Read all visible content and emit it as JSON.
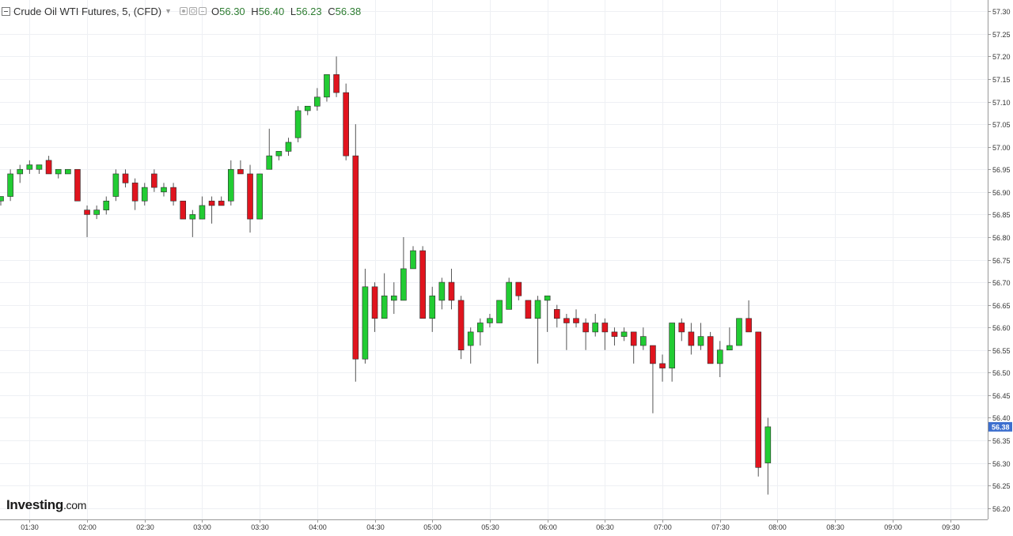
{
  "legend": {
    "title": "Crude Oil WTI Futures, 5, (CFD)",
    "open_key": "O",
    "open": "56.30",
    "high_key": "H",
    "high": "56.40",
    "low_key": "L",
    "low": "56.23",
    "close_key": "C",
    "close": "56.38"
  },
  "brand": {
    "name": "Investing",
    "suffix": ".com"
  },
  "colors": {
    "up": "#22cc33",
    "down": "#e0141e",
    "last_price": "#3d6fcf",
    "grid": "#eef0f4"
  },
  "chart_data": {
    "type": "candlestick",
    "interval": "5",
    "ylim": [
      56.175,
      57.325
    ],
    "y_ticks": [
      "56.20",
      "56.25",
      "56.30",
      "56.35",
      "56.40",
      "56.45",
      "56.50",
      "56.55",
      "56.60",
      "56.65",
      "56.70",
      "56.75",
      "56.80",
      "56.85",
      "56.90",
      "56.95",
      "57.00",
      "57.05",
      "57.10",
      "57.15",
      "57.20",
      "57.25",
      "57.30"
    ],
    "x_ticks": [
      {
        "label": "01:30",
        "t": "01:30"
      },
      {
        "label": "02:00",
        "t": "02:00"
      },
      {
        "label": "02:30",
        "t": "02:30"
      },
      {
        "label": "03:00",
        "t": "03:00"
      },
      {
        "label": "03:30",
        "t": "03:30"
      },
      {
        "label": "04:00",
        "t": "04:00"
      },
      {
        "label": "04:30",
        "t": "04:30"
      },
      {
        "label": "05:00",
        "t": "05:00"
      },
      {
        "label": "05:30",
        "t": "05:30"
      },
      {
        "label": "06:00",
        "t": "06:00"
      },
      {
        "label": "06:30",
        "t": "06:30"
      },
      {
        "label": "07:00",
        "t": "07:00"
      },
      {
        "label": "07:30",
        "t": "07:30"
      },
      {
        "label": "08:00",
        "t": "08:00"
      },
      {
        "label": "08:30",
        "t": "08:30"
      },
      {
        "label": "09:00",
        "t": "09:00"
      },
      {
        "label": "09:30",
        "t": "09:30"
      }
    ],
    "xlim": [
      "01:15",
      "09:50"
    ],
    "last_price": "56.38",
    "candles": [
      {
        "t": "01:15",
        "o": 56.88,
        "h": 56.89,
        "l": 56.87,
        "c": 56.89
      },
      {
        "t": "01:20",
        "o": 56.89,
        "h": 56.95,
        "l": 56.88,
        "c": 56.94
      },
      {
        "t": "01:25",
        "o": 56.94,
        "h": 56.96,
        "l": 56.92,
        "c": 56.95
      },
      {
        "t": "01:30",
        "o": 56.95,
        "h": 56.97,
        "l": 56.94,
        "c": 56.96
      },
      {
        "t": "01:35",
        "o": 56.95,
        "h": 56.96,
        "l": 56.94,
        "c": 56.96
      },
      {
        "t": "01:40",
        "o": 56.97,
        "h": 56.98,
        "l": 56.94,
        "c": 56.94
      },
      {
        "t": "01:45",
        "o": 56.94,
        "h": 56.95,
        "l": 56.93,
        "c": 56.95
      },
      {
        "t": "01:50",
        "o": 56.94,
        "h": 56.95,
        "l": 56.94,
        "c": 56.95
      },
      {
        "t": "01:55",
        "o": 56.95,
        "h": 56.95,
        "l": 56.88,
        "c": 56.88
      },
      {
        "t": "02:00",
        "o": 56.86,
        "h": 56.87,
        "l": 56.8,
        "c": 56.85
      },
      {
        "t": "02:05",
        "o": 56.85,
        "h": 56.87,
        "l": 56.84,
        "c": 56.86
      },
      {
        "t": "02:10",
        "o": 56.86,
        "h": 56.89,
        "l": 56.85,
        "c": 56.88
      },
      {
        "t": "02:15",
        "o": 56.89,
        "h": 56.95,
        "l": 56.88,
        "c": 56.94
      },
      {
        "t": "02:20",
        "o": 56.94,
        "h": 56.95,
        "l": 56.91,
        "c": 56.92
      },
      {
        "t": "02:25",
        "o": 56.92,
        "h": 56.93,
        "l": 56.86,
        "c": 56.88
      },
      {
        "t": "02:30",
        "o": 56.88,
        "h": 56.92,
        "l": 56.87,
        "c": 56.91
      },
      {
        "t": "02:35",
        "o": 56.94,
        "h": 56.95,
        "l": 56.9,
        "c": 56.91
      },
      {
        "t": "02:40",
        "o": 56.9,
        "h": 56.92,
        "l": 56.89,
        "c": 56.91
      },
      {
        "t": "02:45",
        "o": 56.91,
        "h": 56.92,
        "l": 56.87,
        "c": 56.88
      },
      {
        "t": "02:50",
        "o": 56.88,
        "h": 56.88,
        "l": 56.84,
        "c": 56.84
      },
      {
        "t": "02:55",
        "o": 56.84,
        "h": 56.86,
        "l": 56.8,
        "c": 56.85
      },
      {
        "t": "03:00",
        "o": 56.84,
        "h": 56.89,
        "l": 56.84,
        "c": 56.87
      },
      {
        "t": "03:05",
        "o": 56.88,
        "h": 56.89,
        "l": 56.83,
        "c": 56.87
      },
      {
        "t": "03:10",
        "o": 56.88,
        "h": 56.89,
        "l": 56.87,
        "c": 56.87
      },
      {
        "t": "03:15",
        "o": 56.88,
        "h": 56.97,
        "l": 56.87,
        "c": 56.95
      },
      {
        "t": "03:20",
        "o": 56.95,
        "h": 56.97,
        "l": 56.94,
        "c": 56.94
      },
      {
        "t": "03:25",
        "o": 56.94,
        "h": 56.96,
        "l": 56.81,
        "c": 56.84
      },
      {
        "t": "03:30",
        "o": 56.84,
        "h": 56.94,
        "l": 56.84,
        "c": 56.94
      },
      {
        "t": "03:35",
        "o": 56.95,
        "h": 57.04,
        "l": 56.95,
        "c": 56.98
      },
      {
        "t": "03:40",
        "o": 56.98,
        "h": 56.99,
        "l": 56.97,
        "c": 56.99
      },
      {
        "t": "03:45",
        "o": 56.99,
        "h": 57.02,
        "l": 56.98,
        "c": 57.01
      },
      {
        "t": "03:50",
        "o": 57.02,
        "h": 57.09,
        "l": 57.01,
        "c": 57.08
      },
      {
        "t": "03:55",
        "o": 57.08,
        "h": 57.09,
        "l": 57.07,
        "c": 57.09
      },
      {
        "t": "04:00",
        "o": 57.09,
        "h": 57.13,
        "l": 57.08,
        "c": 57.11
      },
      {
        "t": "04:05",
        "o": 57.11,
        "h": 57.16,
        "l": 57.1,
        "c": 57.16
      },
      {
        "t": "04:10",
        "o": 57.16,
        "h": 57.2,
        "l": 57.11,
        "c": 57.12
      },
      {
        "t": "04:15",
        "o": 57.12,
        "h": 57.14,
        "l": 56.97,
        "c": 56.98
      },
      {
        "t": "04:20",
        "o": 56.98,
        "h": 57.05,
        "l": 56.48,
        "c": 56.53
      },
      {
        "t": "04:25",
        "o": 56.53,
        "h": 56.73,
        "l": 56.52,
        "c": 56.69
      },
      {
        "t": "04:30",
        "o": 56.69,
        "h": 56.7,
        "l": 56.59,
        "c": 56.62
      },
      {
        "t": "04:35",
        "o": 56.62,
        "h": 56.72,
        "l": 56.62,
        "c": 56.67
      },
      {
        "t": "04:40",
        "o": 56.66,
        "h": 56.7,
        "l": 56.63,
        "c": 56.67
      },
      {
        "t": "04:45",
        "o": 56.66,
        "h": 56.8,
        "l": 56.66,
        "c": 56.73
      },
      {
        "t": "04:50",
        "o": 56.73,
        "h": 56.78,
        "l": 56.73,
        "c": 56.77
      },
      {
        "t": "04:55",
        "o": 56.77,
        "h": 56.78,
        "l": 56.62,
        "c": 56.62
      },
      {
        "t": "05:00",
        "o": 56.62,
        "h": 56.69,
        "l": 56.59,
        "c": 56.67
      },
      {
        "t": "05:05",
        "o": 56.66,
        "h": 56.71,
        "l": 56.64,
        "c": 56.7
      },
      {
        "t": "05:10",
        "o": 56.7,
        "h": 56.73,
        "l": 56.64,
        "c": 56.66
      },
      {
        "t": "05:15",
        "o": 56.66,
        "h": 56.67,
        "l": 56.53,
        "c": 56.55
      },
      {
        "t": "05:20",
        "o": 56.56,
        "h": 56.6,
        "l": 56.52,
        "c": 56.59
      },
      {
        "t": "05:25",
        "o": 56.59,
        "h": 56.62,
        "l": 56.56,
        "c": 56.61
      },
      {
        "t": "05:30",
        "o": 56.61,
        "h": 56.63,
        "l": 56.6,
        "c": 56.62
      },
      {
        "t": "05:35",
        "o": 56.61,
        "h": 56.66,
        "l": 56.61,
        "c": 56.66
      },
      {
        "t": "05:40",
        "o": 56.64,
        "h": 56.71,
        "l": 56.64,
        "c": 56.7
      },
      {
        "t": "05:45",
        "o": 56.7,
        "h": 56.7,
        "l": 56.66,
        "c": 56.67
      },
      {
        "t": "05:50",
        "o": 56.66,
        "h": 56.66,
        "l": 56.62,
        "c": 56.62
      },
      {
        "t": "05:55",
        "o": 56.62,
        "h": 56.67,
        "l": 56.52,
        "c": 56.66
      },
      {
        "t": "06:00",
        "o": 56.66,
        "h": 56.67,
        "l": 56.59,
        "c": 56.67
      },
      {
        "t": "06:05",
        "o": 56.64,
        "h": 56.65,
        "l": 56.6,
        "c": 56.62
      },
      {
        "t": "06:10",
        "o": 56.62,
        "h": 56.63,
        "l": 56.55,
        "c": 56.61
      },
      {
        "t": "06:15",
        "o": 56.62,
        "h": 56.64,
        "l": 56.6,
        "c": 56.61
      },
      {
        "t": "06:20",
        "o": 56.61,
        "h": 56.62,
        "l": 56.55,
        "c": 56.59
      },
      {
        "t": "06:25",
        "o": 56.59,
        "h": 56.63,
        "l": 56.58,
        "c": 56.61
      },
      {
        "t": "06:30",
        "o": 56.61,
        "h": 56.62,
        "l": 56.55,
        "c": 56.59
      },
      {
        "t": "06:35",
        "o": 56.59,
        "h": 56.6,
        "l": 56.56,
        "c": 56.58
      },
      {
        "t": "06:40",
        "o": 56.58,
        "h": 56.6,
        "l": 56.57,
        "c": 56.59
      },
      {
        "t": "06:45",
        "o": 56.59,
        "h": 56.59,
        "l": 56.52,
        "c": 56.56
      },
      {
        "t": "06:50",
        "o": 56.56,
        "h": 56.6,
        "l": 56.55,
        "c": 56.58
      },
      {
        "t": "06:55",
        "o": 56.56,
        "h": 56.56,
        "l": 56.41,
        "c": 56.52
      },
      {
        "t": "07:00",
        "o": 56.52,
        "h": 56.54,
        "l": 56.48,
        "c": 56.51
      },
      {
        "t": "07:05",
        "o": 56.51,
        "h": 56.61,
        "l": 56.48,
        "c": 56.61
      },
      {
        "t": "07:10",
        "o": 56.61,
        "h": 56.62,
        "l": 56.57,
        "c": 56.59
      },
      {
        "t": "07:15",
        "o": 56.59,
        "h": 56.61,
        "l": 56.54,
        "c": 56.56
      },
      {
        "t": "07:20",
        "o": 56.56,
        "h": 56.61,
        "l": 56.55,
        "c": 56.58
      },
      {
        "t": "07:25",
        "o": 56.58,
        "h": 56.59,
        "l": 56.52,
        "c": 56.52
      },
      {
        "t": "07:30",
        "o": 56.52,
        "h": 56.57,
        "l": 56.49,
        "c": 56.55
      },
      {
        "t": "07:35",
        "o": 56.55,
        "h": 56.6,
        "l": 56.55,
        "c": 56.56
      },
      {
        "t": "07:40",
        "o": 56.56,
        "h": 56.62,
        "l": 56.56,
        "c": 56.62
      },
      {
        "t": "07:45",
        "o": 56.62,
        "h": 56.66,
        "l": 56.59,
        "c": 56.59
      },
      {
        "t": "07:50",
        "o": 56.59,
        "h": 56.59,
        "l": 56.27,
        "c": 56.29
      },
      {
        "t": "07:55",
        "o": 56.3,
        "h": 56.4,
        "l": 56.23,
        "c": 56.38
      }
    ]
  }
}
